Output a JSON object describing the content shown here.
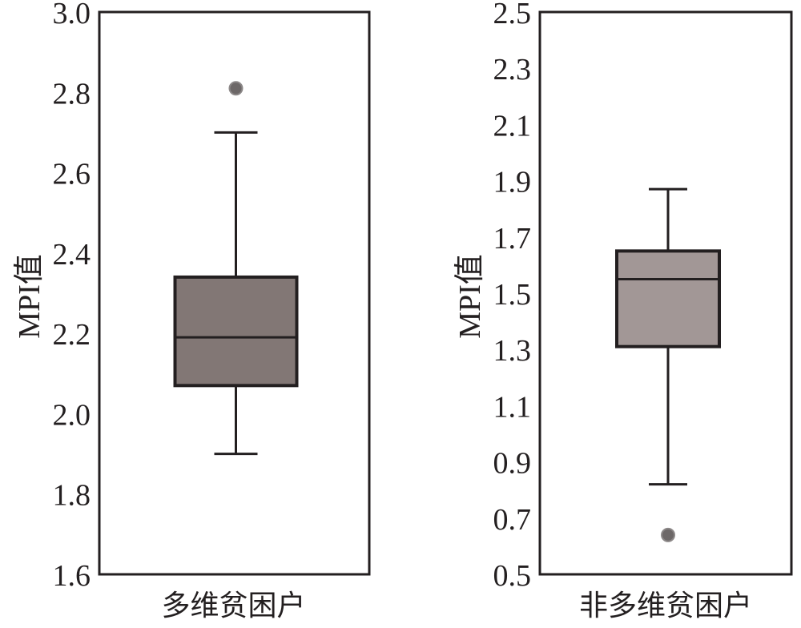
{
  "chart_data": [
    {
      "type": "box",
      "ylabel": "MPI值",
      "xlabel": "多维贫困户",
      "ylim": [
        1.6,
        3.0
      ],
      "yticks": [
        "1.6",
        "1.8",
        "2.0",
        "2.2",
        "2.4",
        "2.6",
        "2.8",
        "3.0"
      ],
      "box": {
        "whisker_low": 1.9,
        "q1": 2.07,
        "median": 2.19,
        "q3": 2.34,
        "whisker_high": 2.7
      },
      "outliers": [
        2.81
      ],
      "fill_color": "#827775",
      "grid": false
    },
    {
      "type": "box",
      "ylabel": "MPI值",
      "xlabel": "非多维贫困户",
      "ylim": [
        0.5,
        2.5
      ],
      "yticks": [
        "0.5",
        "0.7",
        "0.9",
        "1.1",
        "1.3",
        "1.5",
        "1.7",
        "1.9",
        "2.1",
        "2.3",
        "2.5"
      ],
      "box": {
        "whisker_low": 0.82,
        "q1": 1.31,
        "median": 1.55,
        "q3": 1.65,
        "whisker_high": 1.87
      },
      "outliers": [
        0.64
      ],
      "fill_color": "#a29796",
      "grid": false
    }
  ],
  "colors": {
    "axis": "#231f20",
    "outlier": "#6d6868",
    "line": "#231f20"
  }
}
